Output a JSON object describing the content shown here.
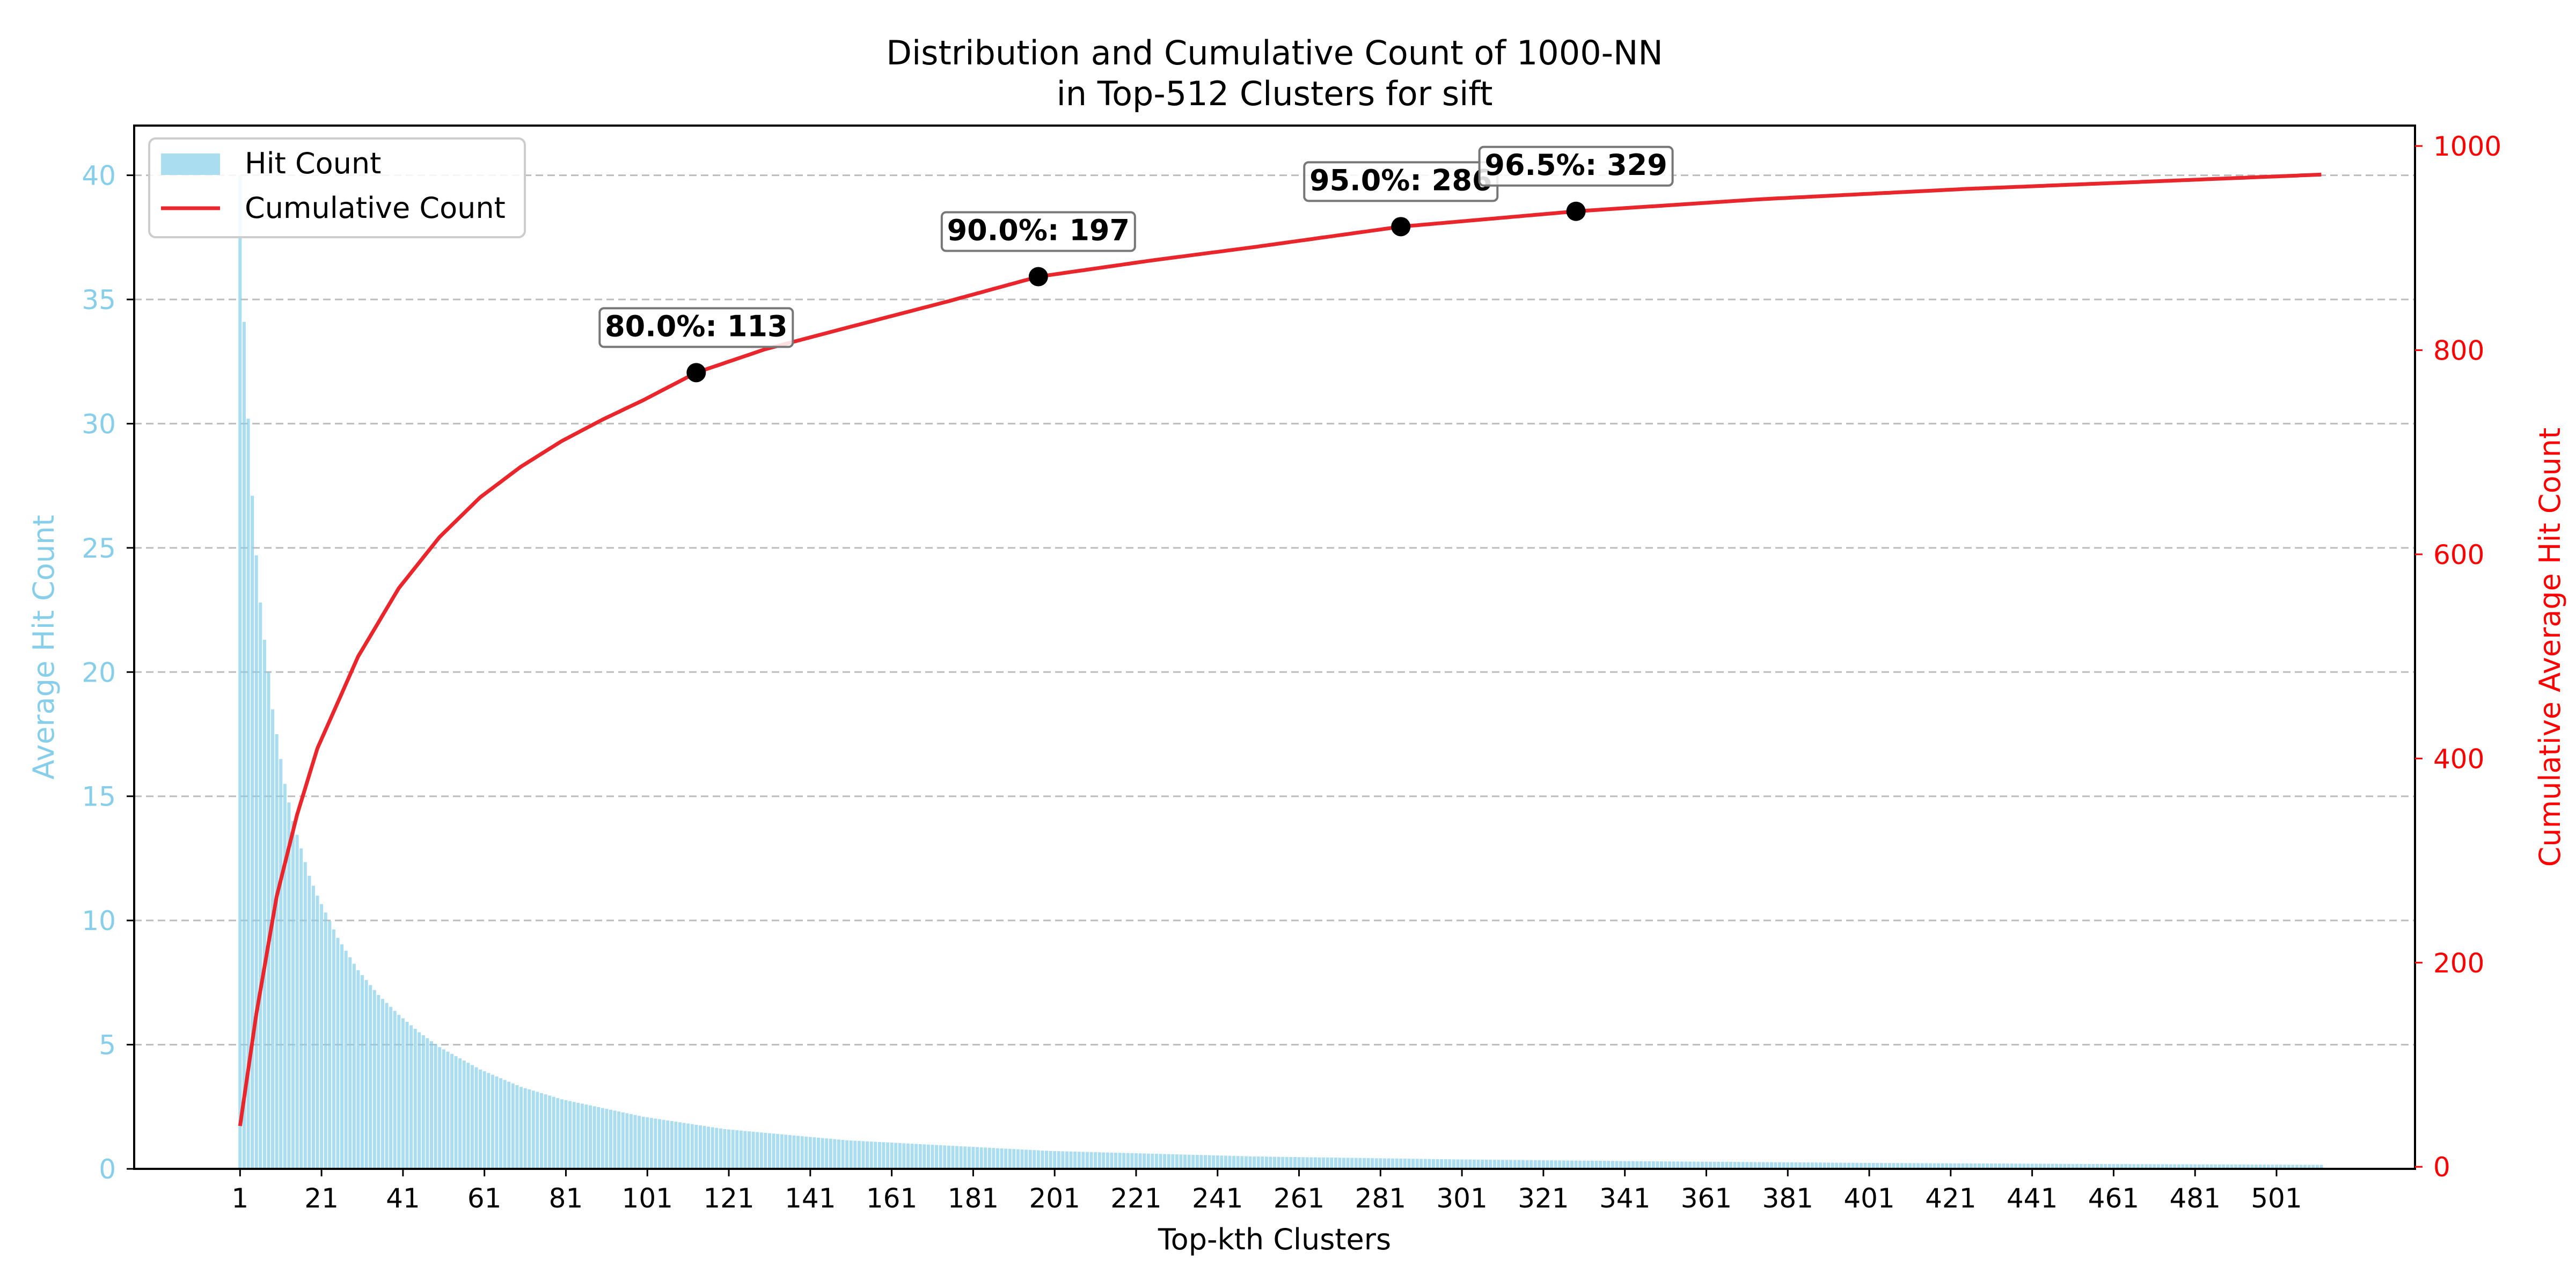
{
  "chart_data": {
    "type": "bar",
    "title_line1": "Distribution and Cumulative Count of 1000-NN",
    "title_line2": "in Top-512 Clusters for sift",
    "xlabel": "Top-kth Clusters",
    "ylabel_left": "Average Hit Count",
    "ylabel_right": "Cumulative Average Hit Count",
    "xlim": [
      -25,
      535
    ],
    "ylim_left": [
      0,
      42
    ],
    "ylim_right": [
      -2,
      1020
    ],
    "x_ticks": [
      1,
      21,
      41,
      61,
      81,
      101,
      121,
      141,
      161,
      181,
      201,
      221,
      241,
      261,
      281,
      301,
      321,
      341,
      361,
      381,
      401,
      421,
      441,
      461,
      481,
      501
    ],
    "y_left_ticks": [
      0,
      5,
      10,
      15,
      20,
      25,
      30,
      35,
      40
    ],
    "y_right_ticks": [
      0,
      200,
      400,
      600,
      800,
      1000
    ],
    "grid": "horizontal dashed",
    "legend_placement": "upper left",
    "legend": [
      {
        "label": "Hit Count",
        "kind": "bar",
        "color": "#87CEEB"
      },
      {
        "label": "Cumulative Count",
        "kind": "line",
        "color": "#e8262b"
      }
    ],
    "series": [
      {
        "name": "Hit Count",
        "axis": "left",
        "note": "per-cluster average hit count, k = 1..512",
        "x": [
          1,
          2,
          3,
          4,
          5,
          6,
          7,
          8,
          9,
          10,
          12,
          14,
          16,
          18,
          20,
          25,
          30,
          35,
          40,
          45,
          50,
          60,
          70,
          80,
          100,
          120,
          150,
          200,
          250,
          300,
          350,
          400,
          450,
          512
        ],
        "values": [
          40.0,
          34.1,
          30.2,
          27.1,
          24.7,
          22.8,
          21.3,
          20.0,
          18.5,
          17.5,
          15.5,
          14.0,
          12.9,
          11.8,
          11.0,
          9.3,
          8.0,
          7.0,
          6.2,
          5.5,
          4.9,
          4.0,
          3.3,
          2.8,
          2.1,
          1.6,
          1.15,
          0.72,
          0.5,
          0.38,
          0.3,
          0.24,
          0.2,
          0.16
        ]
      },
      {
        "name": "Cumulative Count",
        "axis": "right",
        "x": [
          1,
          5,
          10,
          15,
          20,
          30,
          40,
          50,
          60,
          70,
          80,
          90,
          100,
          113,
          130,
          150,
          175,
          197,
          225,
          250,
          286,
          329,
          375,
          425,
          475,
          512
        ],
        "values": [
          40,
          150,
          265,
          345,
          410,
          500,
          567,
          617,
          656,
          686,
          711,
          732,
          751,
          778,
          801,
          822,
          848,
          872,
          888,
          901,
          921,
          936,
          948,
          958,
          966,
          972
        ]
      }
    ],
    "annotations": [
      {
        "label": "80.0%: 113",
        "x": 113,
        "y": 778
      },
      {
        "label": "90.0%: 197",
        "x": 197,
        "y": 872
      },
      {
        "label": "95.0%: 286",
        "x": 286,
        "y": 921
      },
      {
        "label": "96.5%: 329",
        "x": 329,
        "y": 936
      }
    ],
    "colors": {
      "bar": "#87CEEB",
      "line": "#e8262b",
      "left_axis": "#87CEEB",
      "right_axis": "#ff0000",
      "marker": "#000000"
    }
  }
}
